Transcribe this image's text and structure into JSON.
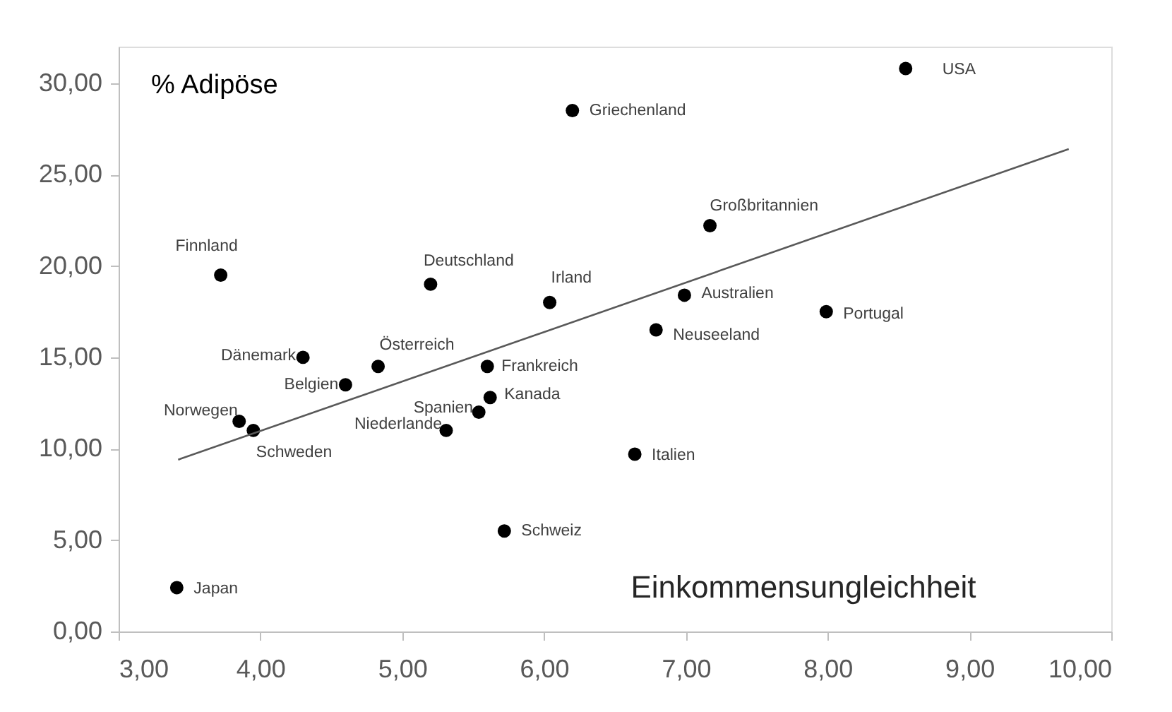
{
  "chart_data": {
    "type": "scatter",
    "xlabel": "Einkommensungleichheit",
    "ylabel": "% Adipöse",
    "xlim": [
      3,
      10
    ],
    "xticks": [
      {
        "value": 3,
        "label": "3,00"
      },
      {
        "value": 4,
        "label": "4,00"
      },
      {
        "value": 5,
        "label": "5,00"
      },
      {
        "value": 6,
        "label": "6,00"
      },
      {
        "value": 7,
        "label": "7,00"
      },
      {
        "value": 8,
        "label": "8,00"
      },
      {
        "value": 9,
        "label": "9,00"
      },
      {
        "value": 10,
        "label": "10,00"
      }
    ],
    "ylim": [
      0,
      32
    ],
    "yticks": [
      {
        "value": 0,
        "label": "0,00"
      },
      {
        "value": 5,
        "label": "5,00"
      },
      {
        "value": 10,
        "label": "10,00"
      },
      {
        "value": 15,
        "label": "15,00"
      },
      {
        "value": 20,
        "label": "20,00"
      },
      {
        "value": 25,
        "label": "25,00"
      },
      {
        "value": 30,
        "label": "30,00"
      }
    ],
    "grid": false,
    "marker": "circle",
    "series": [
      {
        "color": "#000000",
        "x": [
          8.55,
          6.2,
          7.17,
          3.72,
          5.2,
          6.04,
          6.99,
          7.99,
          6.79,
          4.3,
          4.83,
          4.6,
          5.6,
          3.85,
          3.95,
          5.54,
          5.31,
          5.62,
          5.72,
          6.64,
          3.41
        ],
        "values": [
          30.8,
          28.5,
          22.2,
          19.5,
          19.0,
          18.0,
          18.4,
          17.5,
          16.5,
          15.0,
          14.5,
          13.5,
          14.5,
          11.5,
          11.0,
          12.0,
          11.0,
          12.8,
          5.5,
          9.7,
          2.4
        ]
      },
      {
        "type": "line",
        "marker": "none",
        "color": "#595959",
        "x": [
          3.42,
          9.7
        ],
        "values": [
          9.4,
          26.4
        ]
      }
    ],
    "annotations": [
      {
        "text": "USA",
        "x": 8.55,
        "y": 30.8
      },
      {
        "text": "Griechenland",
        "x": 6.2,
        "y": 28.5
      },
      {
        "text": "Großbritannien",
        "x": 7.17,
        "y": 22.2
      },
      {
        "text": "Finnland",
        "x": 3.72,
        "y": 19.5
      },
      {
        "text": "Deutschland",
        "x": 5.2,
        "y": 19.0
      },
      {
        "text": "Irland",
        "x": 6.04,
        "y": 18.0
      },
      {
        "text": "Australien",
        "x": 6.99,
        "y": 18.4
      },
      {
        "text": "Portugal",
        "x": 7.99,
        "y": 17.5
      },
      {
        "text": "Neuseeland",
        "x": 6.79,
        "y": 16.5
      },
      {
        "text": "Dänemark",
        "x": 4.3,
        "y": 15.0
      },
      {
        "text": "Österreich",
        "x": 4.83,
        "y": 14.5
      },
      {
        "text": "Belgien",
        "x": 4.6,
        "y": 13.5
      },
      {
        "text": "Frankreich",
        "x": 5.6,
        "y": 14.5
      },
      {
        "text": "Norwegen",
        "x": 3.85,
        "y": 11.5
      },
      {
        "text": "Schweden",
        "x": 3.95,
        "y": 11.0
      },
      {
        "text": "Spanien",
        "x": 5.54,
        "y": 12.0
      },
      {
        "text": "Niederlande",
        "x": 5.31,
        "y": 11.0
      },
      {
        "text": "Kanada",
        "x": 5.62,
        "y": 12.8
      },
      {
        "text": "Schweiz",
        "x": 5.72,
        "y": 5.5
      },
      {
        "text": "Italien",
        "x": 6.64,
        "y": 9.7
      },
      {
        "text": "Japan",
        "x": 3.41,
        "y": 2.4
      }
    ]
  }
}
